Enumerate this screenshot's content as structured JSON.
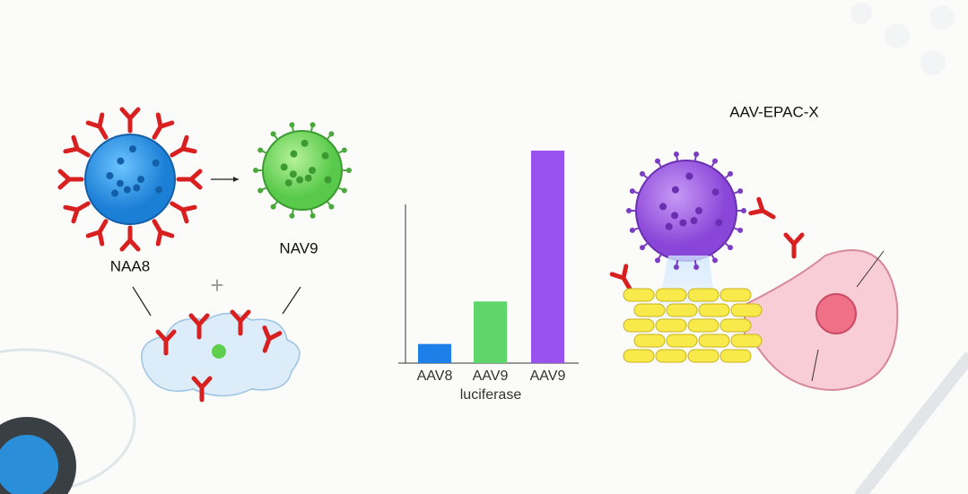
{
  "labels": {
    "virus_left": "NAA8",
    "virus_right": "NAV9",
    "plus": "+",
    "construct": "AAV-EPAC-X"
  },
  "chart_data": {
    "type": "bar",
    "categories": [
      "AAV8",
      "AAV9",
      "AAV9"
    ],
    "values": [
      9,
      29,
      100
    ],
    "colors": [
      "#1f7fe8",
      "#5fd66a",
      "#9a52ee"
    ],
    "x_label": "luciferase",
    "ylim": [
      0,
      100
    ]
  }
}
